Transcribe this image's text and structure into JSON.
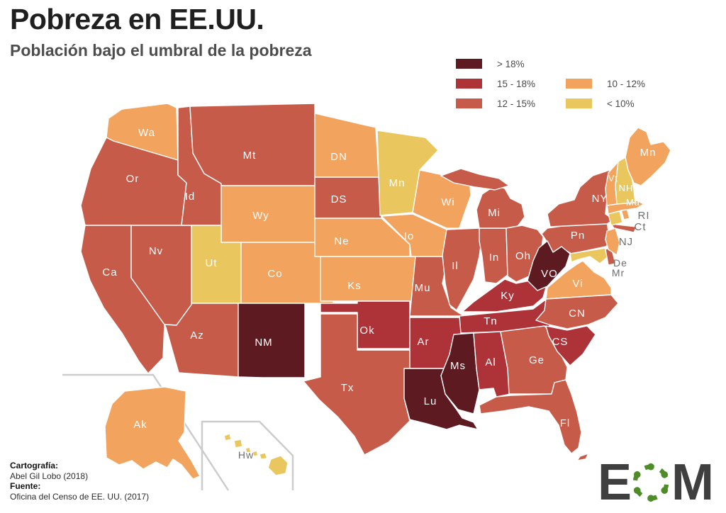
{
  "header": {
    "title": "Pobreza en EE.UU.",
    "subtitle": "Población bajo el umbral de la pobreza"
  },
  "legend": {
    "items": [
      {
        "key": "gt18",
        "label": "> 18%",
        "color": "#5d1a20"
      },
      {
        "key": "15-18",
        "label": "15 - 18%",
        "color": "#ae3338"
      },
      {
        "key": "12-15",
        "label": "12 - 15%",
        "color": "#c75b49"
      },
      {
        "key": "10-12",
        "label": "10 - 12%",
        "color": "#f2a35e"
      },
      {
        "key": "lt10",
        "label": "< 10%",
        "color": "#e9c75e"
      }
    ]
  },
  "map": {
    "border_color": "#ffffff",
    "inset_border_color": "#cccccc",
    "label_white": "#ffffff",
    "label_gray": "#6e6e6e",
    "states": [
      {
        "id": "wa",
        "label": "Wa",
        "category": "10-12",
        "label_style": "white"
      },
      {
        "id": "or",
        "label": "Or",
        "category": "12-15",
        "label_style": "white"
      },
      {
        "id": "ca",
        "label": "Ca",
        "category": "12-15",
        "label_style": "white"
      },
      {
        "id": "nv",
        "label": "Nv",
        "category": "12-15",
        "label_style": "white"
      },
      {
        "id": "id",
        "label": "Id",
        "category": "12-15",
        "label_style": "white"
      },
      {
        "id": "mt",
        "label": "Mt",
        "category": "12-15",
        "label_style": "white"
      },
      {
        "id": "wy",
        "label": "Wy",
        "category": "10-12",
        "label_style": "white"
      },
      {
        "id": "ut",
        "label": "Ut",
        "category": "lt10",
        "label_style": "white"
      },
      {
        "id": "co",
        "label": "Co",
        "category": "10-12",
        "label_style": "white"
      },
      {
        "id": "az",
        "label": "Az",
        "category": "12-15",
        "label_style": "white"
      },
      {
        "id": "nm",
        "label": "NM",
        "category": "gt18",
        "label_style": "white"
      },
      {
        "id": "nd",
        "label": "DN",
        "category": "10-12",
        "label_style": "white"
      },
      {
        "id": "sd",
        "label": "DS",
        "category": "12-15",
        "label_style": "white"
      },
      {
        "id": "ne",
        "label": "Ne",
        "category": "10-12",
        "label_style": "white"
      },
      {
        "id": "ks",
        "label": "Ks",
        "category": "10-12",
        "label_style": "white"
      },
      {
        "id": "ok",
        "label": "Ok",
        "category": "15-18",
        "label_style": "white"
      },
      {
        "id": "tx",
        "label": "Tx",
        "category": "12-15",
        "label_style": "white"
      },
      {
        "id": "mn",
        "label": "Mn",
        "category": "lt10",
        "label_style": "white"
      },
      {
        "id": "ia",
        "label": "Io",
        "category": "10-12",
        "label_style": "white"
      },
      {
        "id": "mo",
        "label": "Mu",
        "category": "12-15",
        "label_style": "white"
      },
      {
        "id": "ar",
        "label": "Ar",
        "category": "15-18",
        "label_style": "white"
      },
      {
        "id": "la",
        "label": "Lu",
        "category": "gt18",
        "label_style": "white"
      },
      {
        "id": "wi",
        "label": "Wi",
        "category": "10-12",
        "label_style": "white"
      },
      {
        "id": "il",
        "label": "Il",
        "category": "12-15",
        "label_style": "white"
      },
      {
        "id": "in",
        "label": "In",
        "category": "12-15",
        "label_style": "white"
      },
      {
        "id": "mi",
        "label": "Mi",
        "category": "12-15",
        "label_style": "white"
      },
      {
        "id": "oh",
        "label": "Oh",
        "category": "12-15",
        "label_style": "white"
      },
      {
        "id": "ky",
        "label": "Ky",
        "category": "15-18",
        "label_style": "white"
      },
      {
        "id": "tn",
        "label": "Tn",
        "category": "15-18",
        "label_style": "white"
      },
      {
        "id": "ms",
        "label": "Ms",
        "category": "gt18",
        "label_style": "white"
      },
      {
        "id": "al",
        "label": "Al",
        "category": "15-18",
        "label_style": "white"
      },
      {
        "id": "ga",
        "label": "Ge",
        "category": "12-15",
        "label_style": "white"
      },
      {
        "id": "fl",
        "label": "Fl",
        "category": "12-15",
        "label_style": "white"
      },
      {
        "id": "pa",
        "label": "Pn",
        "category": "12-15",
        "label_style": "white"
      },
      {
        "id": "ny",
        "label": "NY",
        "category": "12-15",
        "label_style": "white"
      },
      {
        "id": "wv",
        "label": "VO",
        "category": "gt18",
        "label_style": "white"
      },
      {
        "id": "va",
        "label": "Vi",
        "category": "10-12",
        "label_style": "white"
      },
      {
        "id": "nc",
        "label": "CN",
        "category": "12-15",
        "label_style": "white"
      },
      {
        "id": "sc",
        "label": "CS",
        "category": "15-18",
        "label_style": "white"
      },
      {
        "id": "md",
        "label": "Mr",
        "category": "lt10",
        "label_style": "gray"
      },
      {
        "id": "de",
        "label": "De",
        "category": "12-15",
        "label_style": "gray"
      },
      {
        "id": "nj",
        "label": "NJ",
        "category": "10-12",
        "label_style": "gray"
      },
      {
        "id": "ri",
        "label": "RI",
        "category": "10-12",
        "label_style": "gray"
      },
      {
        "id": "ct",
        "label": "Ct",
        "category": "lt10",
        "label_style": "gray"
      },
      {
        "id": "ma",
        "label": "Ma",
        "category": "10-12",
        "label_style": "white"
      },
      {
        "id": "vt",
        "label": "Vt",
        "category": "10-12",
        "label_style": "white"
      },
      {
        "id": "nh",
        "label": "NH",
        "category": "lt10",
        "label_style": "white"
      },
      {
        "id": "me",
        "label": "Mn",
        "category": "10-12",
        "label_style": "white"
      },
      {
        "id": "ak",
        "label": "Ak",
        "category": "10-12",
        "label_style": "white"
      },
      {
        "id": "hi",
        "label": "Hw",
        "category": "lt10",
        "label_style": "gray"
      }
    ]
  },
  "credits": {
    "cartography_label": "Cartografía:",
    "cartography_value": "Abel Gil Lobo (2018)",
    "source_label": "Fuente:",
    "source_value": "Oficina del Censo de EE. UU. (2017)"
  },
  "logo": {
    "letter_e": "E",
    "letter_m": "M",
    "letter_color": "#3f3f3f",
    "ring_color": "#4e8c27"
  }
}
